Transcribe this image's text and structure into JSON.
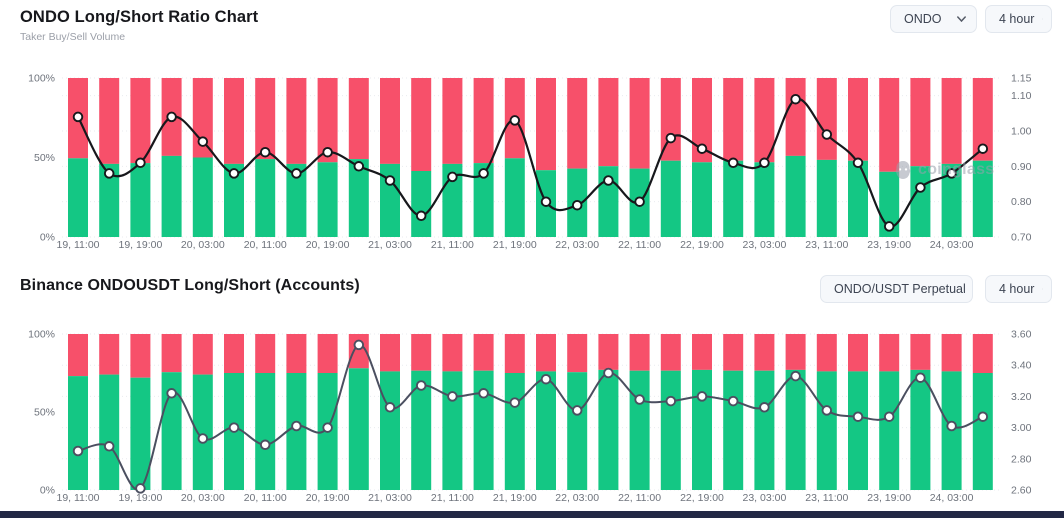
{
  "page": {
    "background": "#ffffff",
    "footer_color": "#222845"
  },
  "chart1_header": {
    "title": "ONDO Long/Short Ratio Chart",
    "subtitle": "Taker Buy/Sell Volume",
    "symbol_select": "ONDO",
    "interval_select": "4 hour"
  },
  "chart2_header": {
    "title": "Binance ONDOUSDT Long/Short (Accounts)",
    "pair_select": "ONDO/USDT Perpetual",
    "interval_select": "4 hour"
  },
  "watermark": {
    "text": "coinglass"
  },
  "chart_data": [
    {
      "type": "bar",
      "subtype": "stacked-100pct-with-ratio-line",
      "title": "ONDO Long/Short Ratio Chart",
      "subtitle": "Taker Buy/Sell Volume",
      "legend_note": "green = long volume share, red = short volume share, black line = long/short ratio (right axis)",
      "x_tick_labels": [
        "19, 11:00",
        "19, 19:00",
        "20, 03:00",
        "20, 11:00",
        "20, 19:00",
        "21, 03:00",
        "21, 11:00",
        "21, 19:00",
        "22, 03:00",
        "22, 11:00",
        "22, 19:00",
        "23, 03:00",
        "23, 11:00",
        "23, 19:00",
        "24, 03:00"
      ],
      "x_label_every_n_bars": 2,
      "bar_count": 30,
      "long_pct": [
        49.5,
        46,
        46.5,
        51,
        50,
        46,
        49,
        46,
        47,
        49,
        46,
        41.5,
        46,
        46.5,
        49.5,
        42,
        43,
        44.5,
        43,
        48,
        47,
        48,
        47,
        51,
        48.5,
        48,
        41,
        44.5,
        46,
        48
      ],
      "line_values": [
        1.04,
        0.88,
        0.91,
        1.04,
        0.97,
        0.88,
        0.94,
        0.88,
        0.94,
        0.9,
        0.86,
        0.76,
        0.87,
        0.88,
        1.03,
        0.8,
        0.79,
        0.86,
        0.8,
        0.98,
        0.95,
        0.91,
        0.91,
        1.09,
        0.99,
        0.91,
        0.73,
        0.84,
        0.88,
        0.95
      ],
      "left_axis": {
        "ticks": [
          "100%",
          "50%",
          "0%"
        ],
        "min": 0,
        "max": 100
      },
      "right_axis": {
        "ticks": [
          "1.15",
          "1.10",
          "1.00",
          "0.90",
          "0.80",
          "0.70"
        ],
        "min": 0.7,
        "max": 1.15
      },
      "grid": "horizontal-dotted",
      "colors": {
        "long": "#14c784",
        "short": "#f7506a",
        "line": "#17181c",
        "marker_fill": "#ffffff",
        "axis_text": "#6e737c",
        "grid": "#e9ebef"
      }
    },
    {
      "type": "bar",
      "subtype": "stacked-100pct-with-ratio-line",
      "title": "Binance ONDOUSDT Long/Short (Accounts)",
      "legend_note": "green = long accounts share, red = short accounts share, gray line = long/short ratio (right axis)",
      "x_tick_labels": [
        "19, 11:00",
        "19, 19:00",
        "20, 03:00",
        "20, 11:00",
        "20, 19:00",
        "21, 03:00",
        "21, 11:00",
        "21, 19:00",
        "22, 03:00",
        "22, 11:00",
        "22, 19:00",
        "23, 03:00",
        "23, 11:00",
        "23, 19:00",
        "24, 03:00"
      ],
      "x_label_every_n_bars": 2,
      "bar_count": 30,
      "long_pct": [
        73,
        74,
        72,
        75.5,
        74,
        75,
        75,
        75,
        75,
        78,
        76,
        76.5,
        76,
        76.5,
        75,
        76,
        75.5,
        77,
        76.5,
        76.5,
        77,
        76.5,
        76.5,
        77,
        76,
        76,
        76,
        77,
        76,
        75
      ],
      "line_values": [
        2.85,
        2.88,
        2.61,
        3.22,
        2.93,
        3.0,
        2.89,
        3.01,
        3.0,
        3.53,
        3.13,
        3.27,
        3.2,
        3.22,
        3.16,
        3.31,
        3.11,
        3.35,
        3.18,
        3.17,
        3.2,
        3.17,
        3.13,
        3.33,
        3.11,
        3.07,
        3.07,
        3.32,
        3.01,
        3.07
      ],
      "left_axis": {
        "ticks": [
          "100%",
          "50%",
          "0%"
        ],
        "min": 0,
        "max": 100
      },
      "right_axis": {
        "ticks": [
          "3.60",
          "3.40",
          "3.20",
          "3.00",
          "2.80",
          "2.60"
        ],
        "min": 2.6,
        "max": 3.6
      },
      "grid": "horizontal-dotted",
      "colors": {
        "long": "#14c784",
        "short": "#f7506a",
        "line": "#4b4f60",
        "marker_fill": "#ffffff",
        "axis_text": "#6e737c",
        "grid": "#e9ebef"
      }
    }
  ]
}
